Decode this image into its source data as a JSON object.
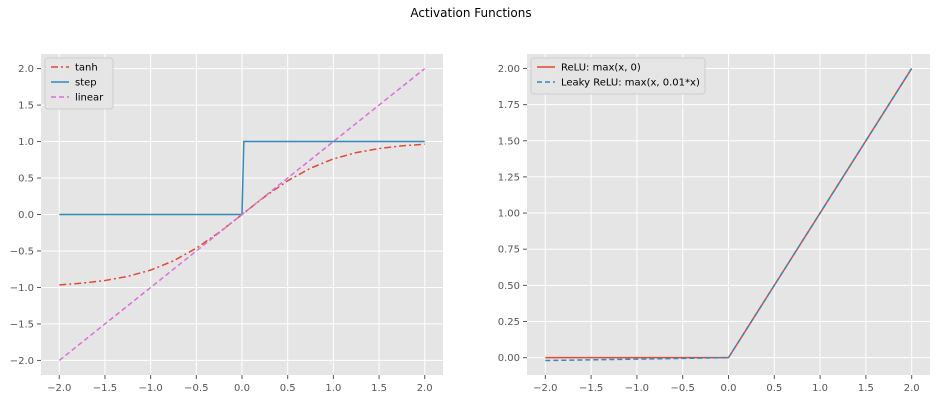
{
  "figure": {
    "title": "Activation Functions",
    "background": "#ffffff",
    "axes_facecolor": "#e5e5e5",
    "grid_color": "#ffffff",
    "tick_color": "#555555"
  },
  "chart_data": [
    {
      "type": "line",
      "title": "",
      "xlabel": "",
      "ylabel": "",
      "xlim": [
        -2.2,
        2.2
      ],
      "ylim": [
        -2.2,
        2.2
      ],
      "grid": true,
      "legend_position": "top-left",
      "xticks": [
        -2.0,
        -1.5,
        -1.0,
        -0.5,
        0.0,
        0.5,
        1.0,
        1.5,
        2.0
      ],
      "xtick_labels": [
        "−2.0",
        "−1.5",
        "−1.0",
        "−0.5",
        "0.0",
        "0.5",
        "1.0",
        "1.5",
        "2.0"
      ],
      "yticks": [
        -2.0,
        -1.5,
        -1.0,
        -0.5,
        0.0,
        0.5,
        1.0,
        1.5,
        2.0
      ],
      "ytick_labels": [
        "−2.0",
        "−1.5",
        "−1.0",
        "−0.5",
        "0.0",
        "0.5",
        "1.0",
        "1.5",
        "2.0"
      ],
      "series": [
        {
          "name": "tanh",
          "color": "#e24a33",
          "dash": "dashdot",
          "x": [
            -2.0,
            -1.75,
            -1.5,
            -1.25,
            -1.0,
            -0.75,
            -0.5,
            -0.25,
            0.0,
            0.25,
            0.5,
            0.75,
            1.0,
            1.25,
            1.5,
            1.75,
            2.0
          ],
          "y": [
            -0.964,
            -0.941,
            -0.905,
            -0.848,
            -0.762,
            -0.635,
            -0.462,
            -0.245,
            0.0,
            0.245,
            0.462,
            0.635,
            0.762,
            0.848,
            0.905,
            0.941,
            0.964
          ]
        },
        {
          "name": "step",
          "color": "#348abd",
          "dash": "solid",
          "x": [
            -2.0,
            0.0,
            0.02,
            2.0
          ],
          "y": [
            0.0,
            0.0,
            1.0,
            1.0
          ]
        },
        {
          "name": "linear",
          "color": "#da70d6",
          "dash": "dashed",
          "x": [
            -2.0,
            2.0
          ],
          "y": [
            -2.0,
            2.0
          ]
        }
      ]
    },
    {
      "type": "line",
      "title": "",
      "xlabel": "",
      "ylabel": "",
      "xlim": [
        -2.2,
        2.2
      ],
      "ylim": [
        -0.12,
        2.1
      ],
      "grid": true,
      "legend_position": "top-left",
      "xticks": [
        -2.0,
        -1.5,
        -1.0,
        -0.5,
        0.0,
        0.5,
        1.0,
        1.5,
        2.0
      ],
      "xtick_labels": [
        "−2.0",
        "−1.5",
        "−1.0",
        "−0.5",
        "0.0",
        "0.5",
        "1.0",
        "1.5",
        "2.0"
      ],
      "yticks": [
        0.0,
        0.25,
        0.5,
        0.75,
        1.0,
        1.25,
        1.5,
        1.75,
        2.0
      ],
      "ytick_labels": [
        "0.00",
        "0.25",
        "0.50",
        "0.75",
        "1.00",
        "1.25",
        "1.50",
        "1.75",
        "2.00"
      ],
      "series": [
        {
          "name": "ReLU: max(x, 0)",
          "color": "#e24a33",
          "dash": "solid",
          "x": [
            -2.0,
            0.0,
            2.0
          ],
          "y": [
            0.0,
            0.0,
            2.0
          ]
        },
        {
          "name": "Leaky ReLU: max(x, 0.01*x)",
          "color": "#348abd",
          "dash": "dashed",
          "x": [
            -2.0,
            0.0,
            2.0
          ],
          "y": [
            -0.02,
            0.0,
            2.0
          ]
        }
      ]
    }
  ]
}
